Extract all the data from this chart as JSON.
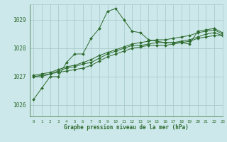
{
  "bg_color": "#cce8ea",
  "grid_color": "#aacccc",
  "line_color": "#2d6a2d",
  "marker_color": "#2d6a2d",
  "xlabel": "Graphe pression niveau de la mer (hPa)",
  "xlim": [
    -0.5,
    23
  ],
  "ylim": [
    1025.6,
    1029.55
  ],
  "yticks": [
    1026,
    1027,
    1028,
    1029
  ],
  "xticks": [
    0,
    1,
    2,
    3,
    4,
    5,
    6,
    7,
    8,
    9,
    10,
    11,
    12,
    13,
    14,
    15,
    16,
    17,
    18,
    19,
    20,
    21,
    22,
    23
  ],
  "series": [
    [
      1026.2,
      1026.6,
      1027.0,
      1027.0,
      1027.5,
      1027.8,
      1027.8,
      1028.35,
      1028.7,
      1029.3,
      1029.4,
      1029.0,
      1028.6,
      1028.55,
      1028.3,
      1028.25,
      1028.2,
      1028.2,
      1028.2,
      1028.15,
      1028.6,
      1028.65,
      1028.7,
      1028.55
    ],
    [
      1027.0,
      1027.0,
      1027.1,
      1027.15,
      1027.2,
      1027.25,
      1027.3,
      1027.4,
      1027.55,
      1027.7,
      1027.8,
      1027.9,
      1028.0,
      1028.05,
      1028.1,
      1028.1,
      1028.1,
      1028.15,
      1028.2,
      1028.25,
      1028.35,
      1028.4,
      1028.45,
      1028.45
    ],
    [
      1027.0,
      1027.05,
      1027.1,
      1027.2,
      1027.3,
      1027.35,
      1027.45,
      1027.5,
      1027.65,
      1027.8,
      1027.9,
      1028.0,
      1028.1,
      1028.1,
      1028.15,
      1028.2,
      1028.2,
      1028.2,
      1028.25,
      1028.3,
      1028.4,
      1028.5,
      1028.55,
      1028.45
    ],
    [
      1027.05,
      1027.1,
      1027.15,
      1027.25,
      1027.35,
      1027.4,
      1027.5,
      1027.6,
      1027.75,
      1027.85,
      1027.95,
      1028.05,
      1028.15,
      1028.2,
      1028.25,
      1028.3,
      1028.3,
      1028.35,
      1028.4,
      1028.45,
      1028.55,
      1028.6,
      1028.65,
      1028.5
    ]
  ]
}
